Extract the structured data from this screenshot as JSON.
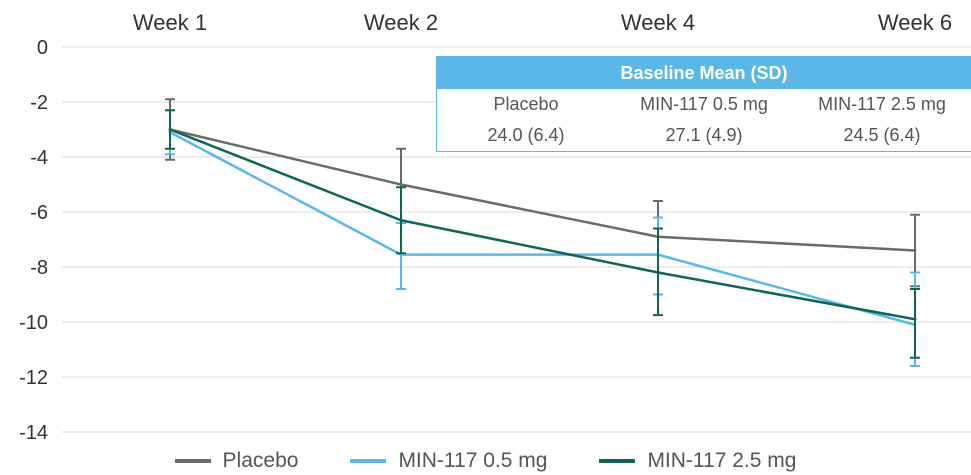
{
  "chart_data": {
    "type": "line",
    "categories": [
      "Week 1",
      "Week 2",
      "Week 4",
      "Week 6"
    ],
    "ylim": [
      -14,
      0
    ],
    "yticks": [
      0,
      -2,
      -4,
      -6,
      -8,
      -10,
      -12,
      -14
    ],
    "ytick_labels": [
      "0",
      "-2",
      "-4",
      "-6",
      "-8",
      "-10",
      "-12",
      "-14"
    ],
    "grid": "horizontal",
    "legend_position": "bottom",
    "series": [
      {
        "name": "Placebo",
        "color": "#6b6b6b",
        "values": [
          -3.0,
          -5.0,
          -6.9,
          -7.4
        ],
        "error_low": [
          -4.1,
          -6.4,
          -9.0,
          -8.7
        ],
        "error_high": [
          -1.9,
          -3.7,
          -5.6,
          -6.1
        ]
      },
      {
        "name": "MIN-117 0.5 mg",
        "color": "#5bb7e5",
        "values": [
          -3.1,
          -7.55,
          -7.55,
          -10.1
        ],
        "error_low": [
          -3.9,
          -8.8,
          -9.0,
          -11.6
        ],
        "error_high": [
          -2.3,
          -6.4,
          -6.2,
          -8.2
        ]
      },
      {
        "name": "MIN-117 2.5 mg",
        "color": "#0f6657",
        "values": [
          -3.0,
          -6.3,
          -8.2,
          -9.9
        ],
        "error_low": [
          -3.7,
          -7.5,
          -9.75,
          -11.3
        ],
        "error_high": [
          -2.3,
          -5.1,
          -6.6,
          -8.8
        ]
      }
    ],
    "baseline_table": {
      "title": "Baseline Mean (SD)",
      "headers": [
        "Placebo",
        "MIN-117 0.5 mg",
        "MIN-117 2.5 mg"
      ],
      "values": [
        "24.0 (6.4)",
        "27.1 (4.9)",
        "24.5 (6.4)"
      ]
    }
  }
}
